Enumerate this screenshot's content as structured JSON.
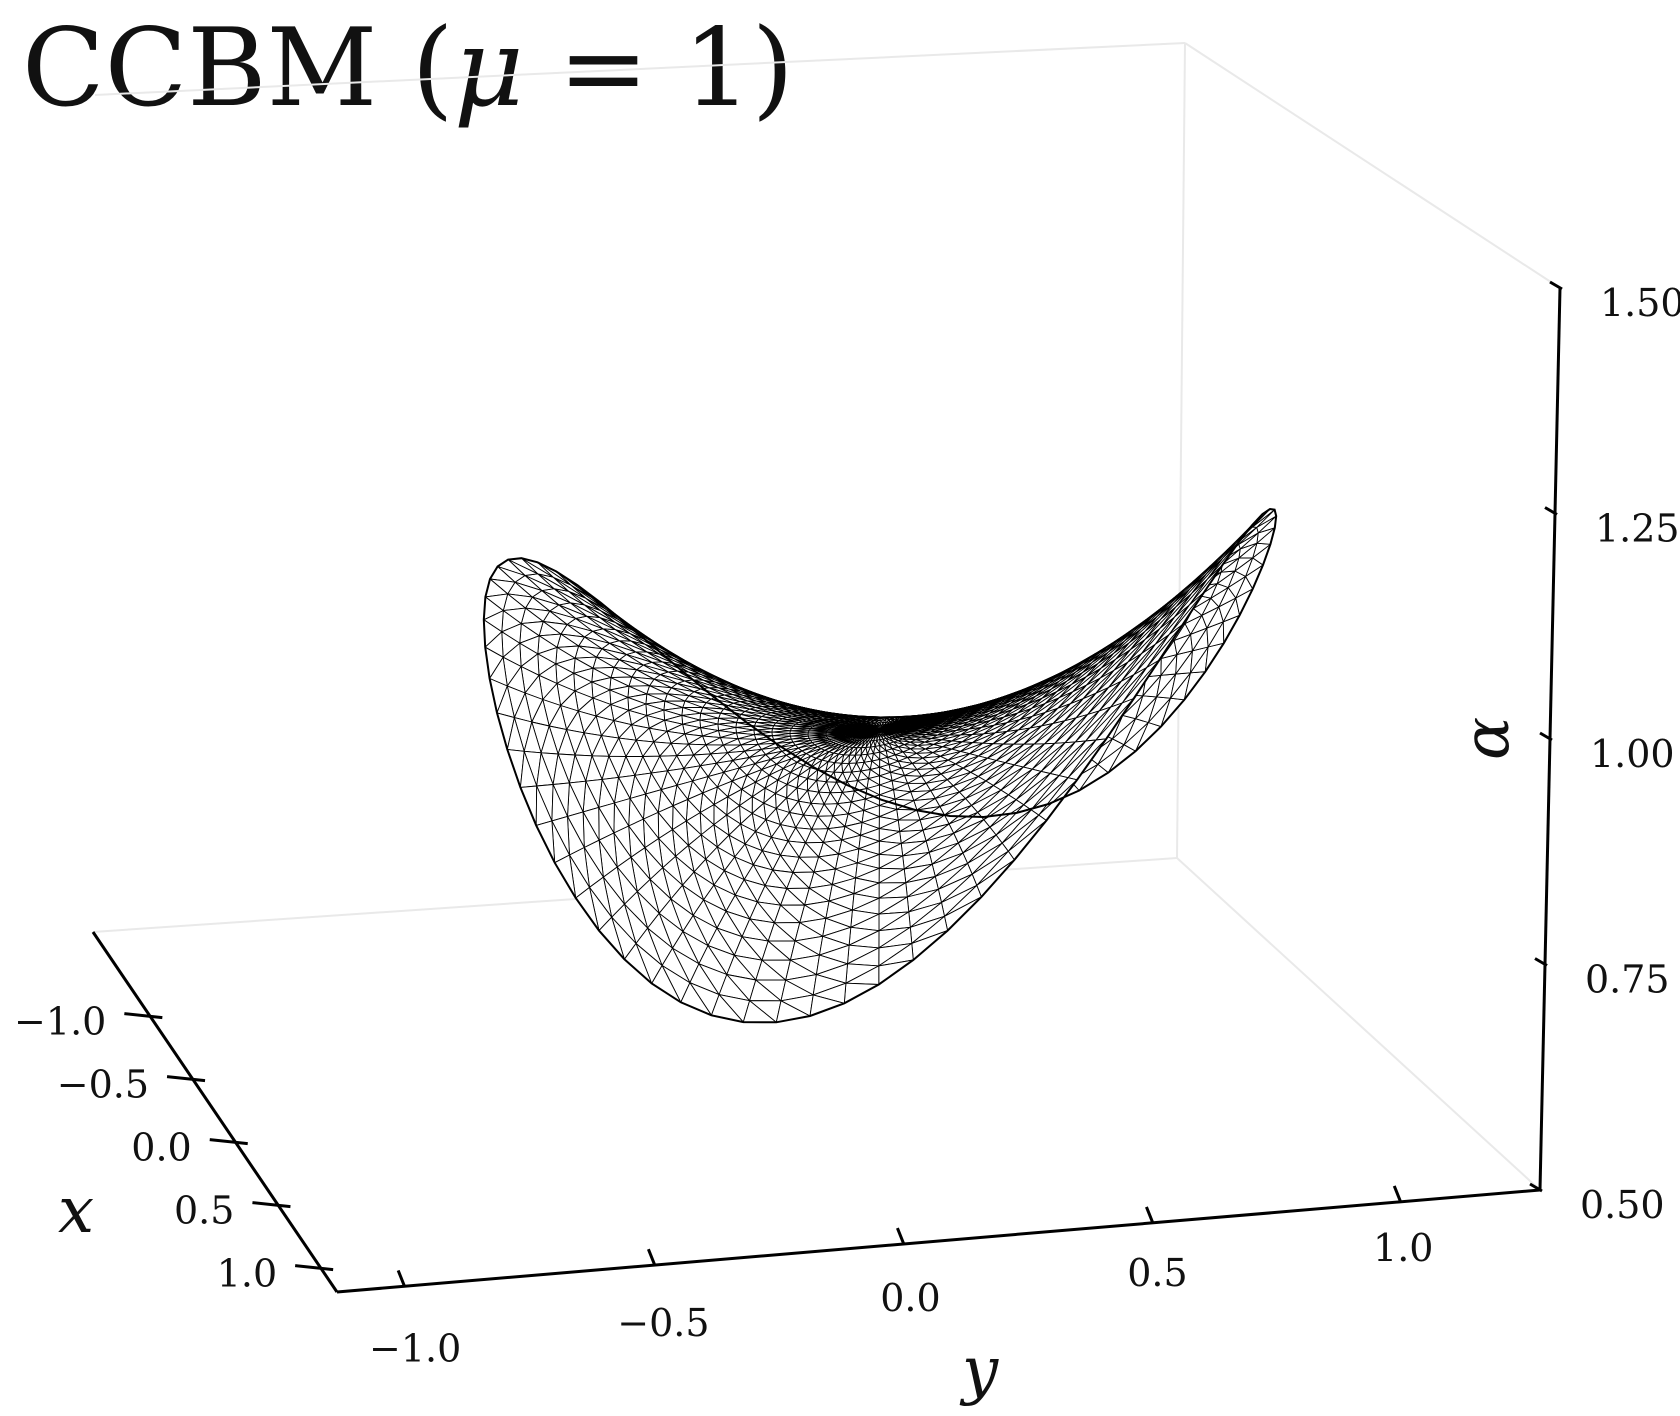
{
  "chart_data": {
    "type": "surface-3d-wireframe",
    "title": "CCBM (μ = 1)",
    "title_parts": {
      "text": "CCBM (",
      "symbol": "μ",
      "eq": " = 1)"
    },
    "x_axis": {
      "label": "x",
      "ticks": [
        -1.0,
        -0.5,
        0.0,
        0.5,
        1.0
      ],
      "tick_labels": [
        "−1.0",
        "−0.5",
        "0.0",
        "0.5",
        "1.0"
      ],
      "range": [
        -1.0,
        1.0
      ]
    },
    "y_axis": {
      "label": "y",
      "ticks": [
        -1.0,
        -0.5,
        0.0,
        0.5,
        1.0
      ],
      "tick_labels": [
        "−1.0",
        "−0.5",
        "0.0",
        "0.5",
        "1.0"
      ],
      "range": [
        -1.0,
        1.0
      ]
    },
    "z_axis": {
      "label": "α",
      "ticks": [
        0.5,
        0.75,
        1.0,
        1.25,
        1.5
      ],
      "tick_labels": [
        "0.50",
        "0.75",
        "1.00",
        "1.25",
        "1.50"
      ],
      "range": [
        0.5,
        1.5
      ]
    },
    "grid": false,
    "mesh_color": "#000000",
    "pane_edge_color": "#e9e9e9"
  }
}
